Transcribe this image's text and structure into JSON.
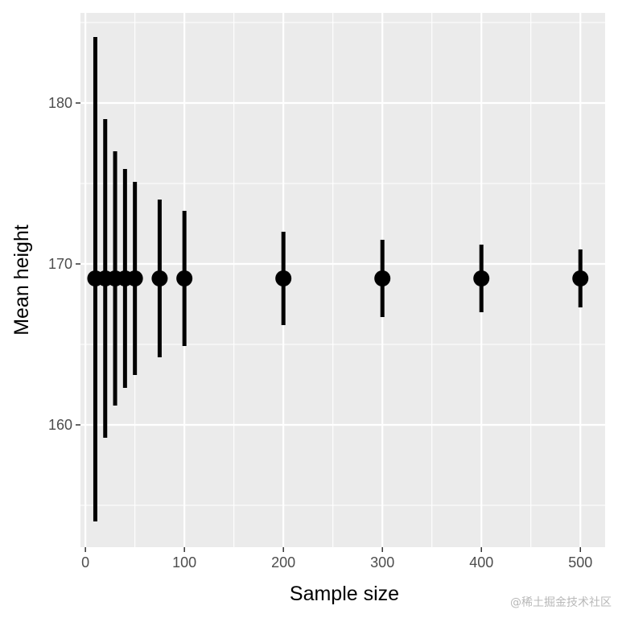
{
  "chart_data": {
    "type": "scatter",
    "geom": "pointrange",
    "title": "",
    "xlabel": "Sample size",
    "ylabel": "Mean height",
    "xlim": [
      -5,
      525
    ],
    "ylim": [
      152.4,
      185.6
    ],
    "x_ticks": [
      0,
      100,
      200,
      300,
      400,
      500
    ],
    "x_minor_ticks": [
      50,
      150,
      250,
      350,
      450
    ],
    "y_ticks": [
      160,
      170,
      180
    ],
    "y_minor_ticks": [
      155,
      165,
      175,
      185
    ],
    "grid": true,
    "legend": "none",
    "points": [
      {
        "x": 10,
        "y": 169.1,
        "ymin": 154.0,
        "ymax": 184.1
      },
      {
        "x": 20,
        "y": 169.1,
        "ymin": 159.2,
        "ymax": 179.0
      },
      {
        "x": 30,
        "y": 169.1,
        "ymin": 161.2,
        "ymax": 177.0
      },
      {
        "x": 40,
        "y": 169.1,
        "ymin": 162.3,
        "ymax": 175.9
      },
      {
        "x": 50,
        "y": 169.1,
        "ymin": 163.1,
        "ymax": 175.1
      },
      {
        "x": 75,
        "y": 169.1,
        "ymin": 164.2,
        "ymax": 174.0
      },
      {
        "x": 100,
        "y": 169.1,
        "ymin": 164.9,
        "ymax": 173.3
      },
      {
        "x": 200,
        "y": 169.1,
        "ymin": 166.2,
        "ymax": 172.0
      },
      {
        "x": 300,
        "y": 169.1,
        "ymin": 166.7,
        "ymax": 171.5
      },
      {
        "x": 400,
        "y": 169.1,
        "ymin": 167.0,
        "ymax": 171.2
      },
      {
        "x": 500,
        "y": 169.1,
        "ymin": 167.3,
        "ymax": 170.9
      }
    ],
    "colors": {
      "panel_background": "#ebebeb",
      "grid": "#ffffff",
      "point": "#000000",
      "tick_text": "#4d4d4d",
      "axis_tick": "#333333"
    }
  },
  "watermark": "@稀土掘金技术社区"
}
